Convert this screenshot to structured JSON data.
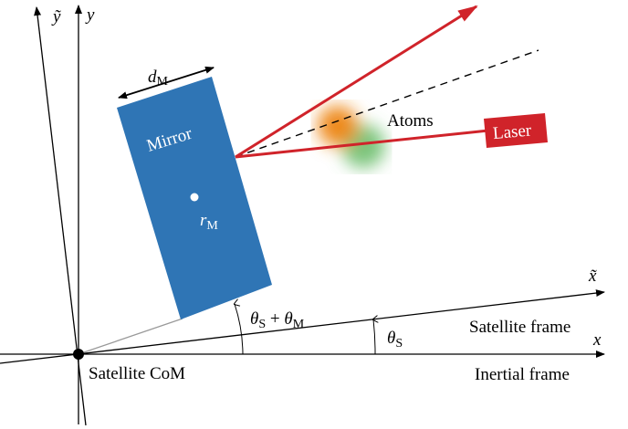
{
  "labels": {
    "y_tilde": "ỹ",
    "y": "y",
    "d_m": {
      "base": "d",
      "sub": "M"
    },
    "mirror": "Mirror",
    "r_m": {
      "base": "r",
      "sub": "M"
    },
    "atoms": "Atoms",
    "laser": "Laser",
    "x_tilde": "x̃",
    "theta_sum": {
      "a": "θ",
      "a_sub": "S",
      "op": " + ",
      "b": "θ",
      "b_sub": "M"
    },
    "satellite_frame": "Satellite frame",
    "x": "x",
    "theta_s": {
      "base": "θ",
      "sub": "S"
    },
    "satellite_com": "Satellite CoM",
    "inertial_frame": "Inertial frame"
  }
}
